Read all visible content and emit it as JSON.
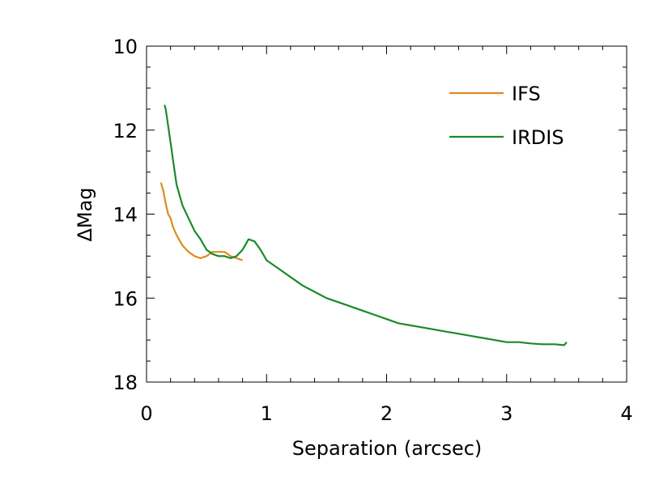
{
  "chart_data": {
    "type": "line",
    "title": "",
    "xlabel": "Separation (arcsec)",
    "ylabel": "ΔMag",
    "xlim": [
      0,
      4
    ],
    "ylim": [
      10,
      18
    ],
    "y_inverted": true,
    "xticks": [
      "0",
      "1",
      "2",
      "3",
      "4"
    ],
    "yticks": [
      "10",
      "12",
      "14",
      "16",
      "18"
    ],
    "legend_position": "top-right",
    "grid": false,
    "series": [
      {
        "name": "IFS",
        "color": "#e08a1e",
        "x": [
          0.12,
          0.14,
          0.16,
          0.18,
          0.2,
          0.22,
          0.25,
          0.28,
          0.3,
          0.35,
          0.4,
          0.45,
          0.5,
          0.55,
          0.6,
          0.65,
          0.7,
          0.75,
          0.8
        ],
        "y": [
          13.25,
          13.45,
          13.75,
          14.0,
          14.1,
          14.3,
          14.5,
          14.65,
          14.75,
          14.9,
          15.0,
          15.05,
          15.0,
          14.9,
          14.9,
          14.9,
          15.0,
          15.05,
          15.1
        ]
      },
      {
        "name": "IRDIS",
        "color": "#1a8a2a",
        "x": [
          0.15,
          0.16,
          0.18,
          0.2,
          0.22,
          0.25,
          0.28,
          0.3,
          0.35,
          0.4,
          0.45,
          0.5,
          0.55,
          0.6,
          0.65,
          0.7,
          0.75,
          0.8,
          0.85,
          0.9,
          0.95,
          1.0,
          1.1,
          1.2,
          1.3,
          1.4,
          1.5,
          1.6,
          1.7,
          1.8,
          1.9,
          2.0,
          2.1,
          2.2,
          2.3,
          2.4,
          2.5,
          2.6,
          2.7,
          2.8,
          2.9,
          3.0,
          3.1,
          3.2,
          3.3,
          3.4,
          3.48,
          3.5
        ],
        "y": [
          11.4,
          11.5,
          11.9,
          12.3,
          12.7,
          13.3,
          13.6,
          13.8,
          14.1,
          14.4,
          14.6,
          14.85,
          14.95,
          15.0,
          15.0,
          15.05,
          15.0,
          14.85,
          14.6,
          14.65,
          14.85,
          15.1,
          15.3,
          15.5,
          15.7,
          15.85,
          16.0,
          16.1,
          16.2,
          16.3,
          16.4,
          16.5,
          16.6,
          16.65,
          16.7,
          16.75,
          16.8,
          16.85,
          16.9,
          16.95,
          17.0,
          17.05,
          17.05,
          17.08,
          17.1,
          17.1,
          17.12,
          17.05
        ]
      }
    ]
  }
}
